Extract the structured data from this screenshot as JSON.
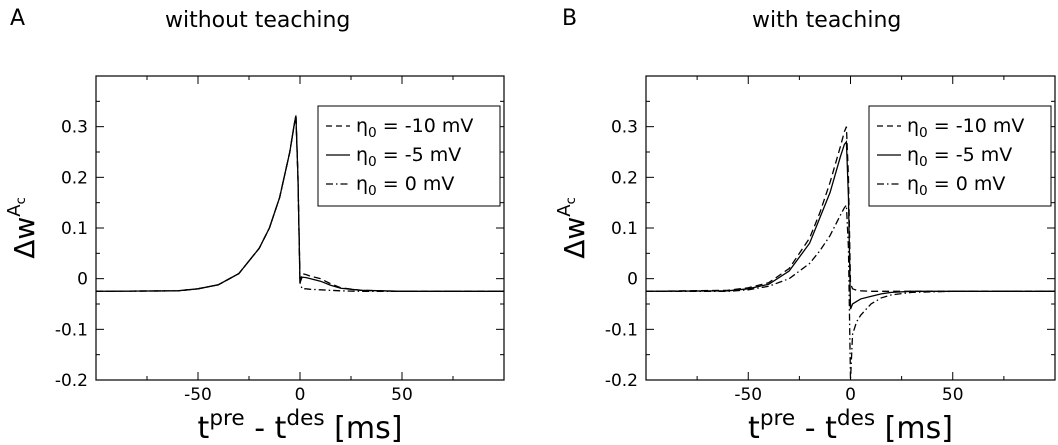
{
  "panels": [
    {
      "letter": "A",
      "title": "without teaching"
    },
    {
      "letter": "B",
      "title": "with teaching"
    }
  ],
  "chart_data": [
    {
      "type": "line",
      "panel_letter": "A",
      "title": "without teaching",
      "xlabel": "t^pre - t^des [ms]",
      "ylabel": "Δw^A_c",
      "xlim": [
        -100,
        100
      ],
      "ylim": [
        -0.2,
        0.4
      ],
      "xticks": [
        -50,
        0,
        50
      ],
      "yticks": [
        -0.2,
        -0.1,
        0,
        0.1,
        0.2,
        0.3
      ],
      "ytick_labels": [
        "-0.2",
        "-0.1",
        "0",
        "0.1",
        "0.2",
        "0.3"
      ],
      "legend_position": "top-right",
      "grid": false,
      "series": [
        {
          "name": "η_0 = -10 mV",
          "style": "dashed",
          "x": [
            -100,
            -60,
            -50,
            -40,
            -30,
            -20,
            -15,
            -10,
            -5,
            -3,
            -2,
            -1,
            0,
            1,
            3,
            5,
            10,
            15,
            20,
            30,
            50,
            100
          ],
          "y": [
            -0.025,
            -0.024,
            -0.02,
            -0.012,
            0.01,
            0.06,
            0.1,
            0.16,
            0.25,
            0.3,
            0.322,
            0.2,
            -0.008,
            0.01,
            0.008,
            0.005,
            0.0,
            -0.01,
            -0.018,
            -0.023,
            -0.025,
            -0.025
          ]
        },
        {
          "name": "η_0 = -5 mV",
          "style": "solid",
          "x": [
            -100,
            -60,
            -50,
            -40,
            -30,
            -20,
            -15,
            -10,
            -5,
            -3,
            -2,
            -1,
            0,
            1,
            3,
            5,
            10,
            15,
            20,
            30,
            50,
            100
          ],
          "y": [
            -0.025,
            -0.024,
            -0.02,
            -0.012,
            0.01,
            0.06,
            0.1,
            0.16,
            0.25,
            0.3,
            0.322,
            0.2,
            -0.008,
            0.003,
            0.002,
            0.0,
            -0.005,
            -0.013,
            -0.019,
            -0.023,
            -0.025,
            -0.025
          ]
        },
        {
          "name": "η_0 = 0 mV",
          "style": "dashdot",
          "x": [
            -100,
            -60,
            -50,
            -40,
            -30,
            -20,
            -15,
            -10,
            -5,
            -3,
            -2,
            -1,
            0,
            1,
            3,
            5,
            10,
            15,
            20,
            30,
            50,
            100
          ],
          "y": [
            -0.025,
            -0.024,
            -0.02,
            -0.012,
            0.01,
            0.06,
            0.1,
            0.16,
            0.25,
            0.3,
            0.322,
            0.2,
            -0.008,
            -0.02,
            -0.02,
            -0.021,
            -0.022,
            -0.023,
            -0.024,
            -0.025,
            -0.025,
            -0.025
          ]
        }
      ]
    },
    {
      "type": "line",
      "panel_letter": "B",
      "title": "with teaching",
      "xlabel": "t^pre - t^des [ms]",
      "ylabel": "Δw^A_c",
      "xlim": [
        -100,
        100
      ],
      "ylim": [
        -0.2,
        0.4
      ],
      "xticks": [
        -50,
        0,
        50
      ],
      "yticks": [
        -0.2,
        -0.1,
        0,
        0.1,
        0.2,
        0.3
      ],
      "ytick_labels": [
        "-0.2",
        "-0.1",
        "0",
        "0.1",
        "0.2",
        "0.3"
      ],
      "legend_position": "top-right",
      "grid": false,
      "series": [
        {
          "name": "η_0 = -10 mV",
          "style": "dashed",
          "x": [
            -100,
            -60,
            -50,
            -40,
            -30,
            -20,
            -15,
            -10,
            -5,
            -3,
            -2,
            -1,
            0,
            1,
            3,
            5,
            10,
            15,
            20,
            30,
            50,
            100
          ],
          "y": [
            -0.025,
            -0.023,
            -0.018,
            -0.008,
            0.02,
            0.08,
            0.13,
            0.19,
            0.26,
            0.29,
            0.3,
            0.2,
            -0.01,
            -0.02,
            -0.023,
            -0.024,
            -0.025,
            -0.025,
            -0.025,
            -0.025,
            -0.025,
            -0.025
          ]
        },
        {
          "name": "η_0 = -5 mV",
          "style": "solid",
          "x": [
            -100,
            -60,
            -50,
            -40,
            -30,
            -20,
            -15,
            -10,
            -5,
            -3,
            -2,
            -1,
            0,
            1,
            3,
            5,
            10,
            15,
            20,
            30,
            50,
            100
          ],
          "y": [
            -0.025,
            -0.024,
            -0.02,
            -0.011,
            0.015,
            0.07,
            0.12,
            0.17,
            0.24,
            0.265,
            0.27,
            0.16,
            -0.06,
            -0.05,
            -0.045,
            -0.04,
            -0.035,
            -0.03,
            -0.027,
            -0.025,
            -0.025,
            -0.025
          ]
        },
        {
          "name": "η_0 = 0 mV",
          "style": "dashdot",
          "x": [
            -100,
            -60,
            -50,
            -40,
            -30,
            -20,
            -15,
            -10,
            -5,
            -3,
            -2,
            -1,
            0,
            1,
            3,
            5,
            10,
            15,
            20,
            30,
            50,
            100
          ],
          "y": [
            -0.025,
            -0.025,
            -0.022,
            -0.015,
            0.0,
            0.03,
            0.055,
            0.085,
            0.125,
            0.14,
            0.145,
            0.06,
            -0.2,
            -0.11,
            -0.085,
            -0.072,
            -0.05,
            -0.038,
            -0.032,
            -0.027,
            -0.025,
            -0.025
          ]
        }
      ]
    }
  ]
}
